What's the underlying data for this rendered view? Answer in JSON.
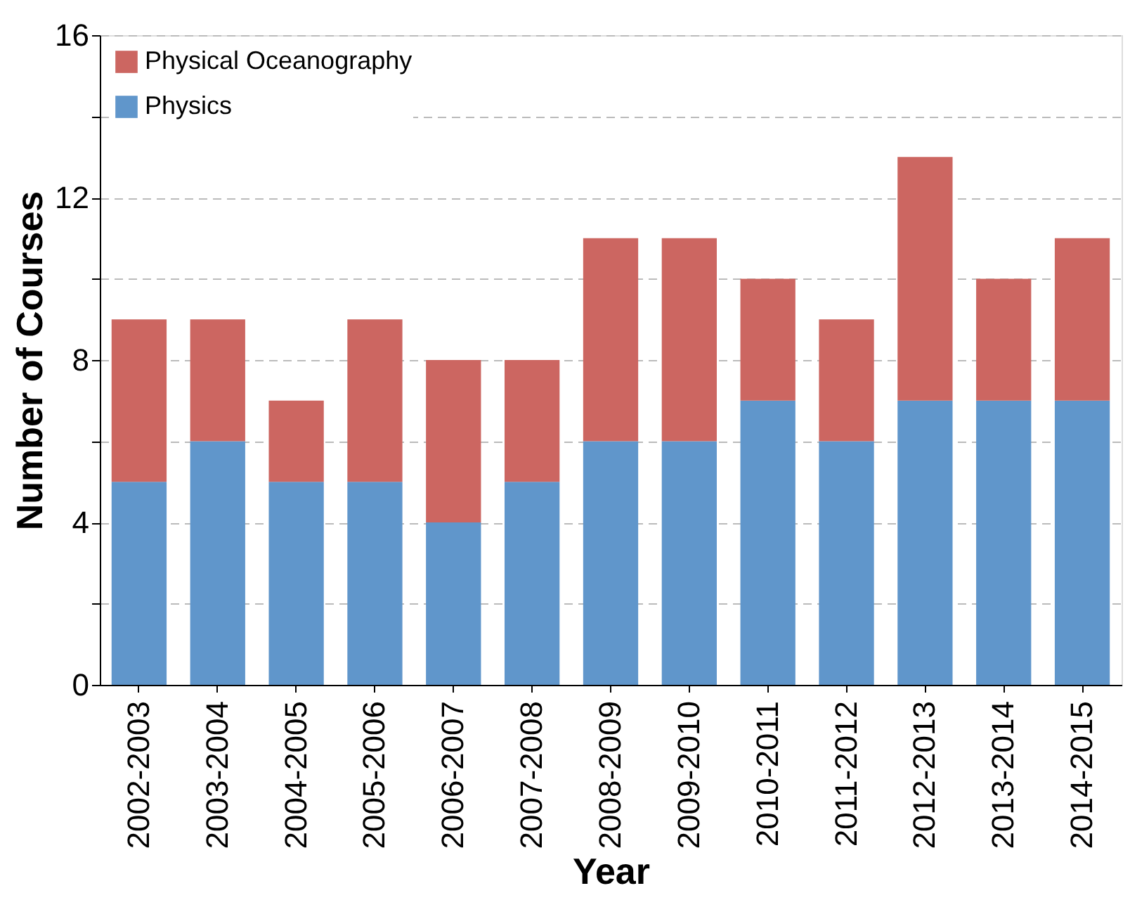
{
  "chart_data": {
    "type": "bar",
    "stacked": true,
    "xlabel": "Year",
    "ylabel": "Number of Courses",
    "categories": [
      "2002-2003",
      "2003-2004",
      "2004-2005",
      "2005-2006",
      "2006-2007",
      "2007-2008",
      "2008-2009",
      "2009-2010",
      "2010-2011",
      "2011-2012",
      "2012-2013",
      "2013-2014",
      "2014-2015"
    ],
    "series": [
      {
        "name": "Physics",
        "color": "#6096cb",
        "values": [
          5,
          6,
          5,
          5,
          4,
          5,
          6,
          6,
          7,
          6,
          7,
          7,
          7
        ]
      },
      {
        "name": "Physical Oceanography",
        "color": "#cc6661",
        "values": [
          4,
          3,
          2,
          4,
          4,
          3,
          5,
          5,
          3,
          3,
          6,
          3,
          4
        ]
      }
    ],
    "ylim": [
      0,
      16
    ],
    "yticks": [
      0,
      {
        "value": 2,
        "label": null
      },
      4,
      {
        "value": 6,
        "label": null
      },
      8,
      {
        "value": 10,
        "label": null
      },
      12,
      {
        "value": 14,
        "label": null
      },
      16
    ],
    "grid": "y",
    "legend": "top left"
  }
}
